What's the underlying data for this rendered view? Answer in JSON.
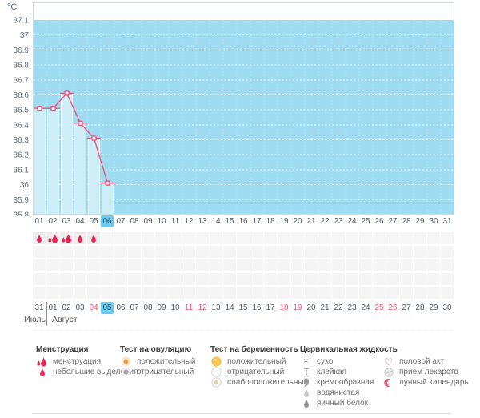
{
  "unit_label": "°C",
  "colors": {
    "plot_bg": "#a0dcf1",
    "plot_band_top": "#fcfeff",
    "plot_border": "#b9e4f4",
    "bar_fill": "#cdedf8",
    "bar_edge": "#e6f7fc",
    "accent_pink": "#f0527a",
    "drop_red": "#e62753",
    "highlight_blue": "#67cbef",
    "red_date": "#f2537d",
    "axis_text": "#5c6e78"
  },
  "chart_data": {
    "type": "line",
    "ylabel": "°C",
    "ylim": [
      35.8,
      37.1
    ],
    "ytick_step": 0.1,
    "ytick_labels": [
      "37.1",
      "37",
      "36.9",
      "36.8",
      "36.7",
      "36.6",
      "36.5",
      "36.4",
      "36.3",
      "36.2",
      "36.1",
      "36",
      "35.9",
      "35.8"
    ],
    "grid": "dotted-white-horizontal",
    "legend_position": "bottom",
    "days": [
      "01",
      "02",
      "03",
      "04",
      "05",
      "06",
      "07",
      "08",
      "09",
      "10",
      "11",
      "12",
      "13",
      "14",
      "15",
      "16",
      "17",
      "18",
      "19",
      "20",
      "21",
      "22",
      "23",
      "24",
      "25",
      "26",
      "27",
      "28",
      "29",
      "30",
      "31"
    ],
    "series": [
      {
        "name": "temperature",
        "day_indices": [
          1,
          2,
          3,
          4,
          5,
          6
        ],
        "values": [
          36.5,
          36.5,
          36.6,
          36.4,
          36.3,
          36.0
        ]
      }
    ],
    "bars_under_points": true
  },
  "cycle_row": {
    "highlighted_day": "06"
  },
  "tracking": {
    "menstruation_cells": [
      {
        "day": "01",
        "icon": "drop-small"
      },
      {
        "day": "02",
        "icon": "drop-duo"
      },
      {
        "day": "03",
        "icon": "drop-duo"
      },
      {
        "day": "04",
        "icon": "drop-small"
      },
      {
        "day": "05",
        "icon": "drop-small"
      }
    ],
    "empty_rows": 4
  },
  "calendar": {
    "dates": [
      "31",
      "01",
      "02",
      "03",
      "04",
      "05",
      "06",
      "07",
      "08",
      "09",
      "10",
      "11",
      "12",
      "13",
      "14",
      "15",
      "16",
      "17",
      "18",
      "19",
      "20",
      "21",
      "22",
      "23",
      "24",
      "25",
      "26",
      "27",
      "28",
      "29",
      "30"
    ],
    "red_dates": [
      "04",
      "11",
      "12",
      "18",
      "19",
      "25",
      "26"
    ],
    "highlighted_date": "05",
    "month_left": "Июль",
    "month_right": "Август"
  },
  "legend": {
    "groups": [
      {
        "header": "Менструация",
        "items": [
          {
            "icon": "drop-duo",
            "label": "менструация"
          },
          {
            "icon": "drop-small",
            "label": "небольшие выделения"
          }
        ]
      },
      {
        "header": "Тест на овуляцию",
        "items": [
          {
            "icon": "radio-positive",
            "label": "положительный"
          },
          {
            "icon": "radio-negative",
            "label": "отрицательный"
          }
        ]
      },
      {
        "header": "Тест на беременность",
        "items": [
          {
            "icon": "bead-positive",
            "label": "положительный"
          },
          {
            "icon": "bead-negative",
            "label": "отрицательный"
          },
          {
            "icon": "bead-weak",
            "label": "слабоположительный"
          }
        ]
      },
      {
        "header": "Цервикальная жидкость",
        "items": [
          {
            "icon": "x-dry",
            "label": "сухо"
          },
          {
            "icon": "sticky",
            "label": "клейкая"
          },
          {
            "icon": "creamy",
            "label": "кремообразная"
          },
          {
            "icon": "watery",
            "label": "водянистая"
          },
          {
            "icon": "eggwhite",
            "label": "яичный белок"
          }
        ]
      },
      {
        "header": "",
        "items": [
          {
            "icon": "heart",
            "label": "половой акт"
          },
          {
            "icon": "pill",
            "label": "прием лекарств"
          },
          {
            "icon": "moon",
            "label": "лунный календарь"
          }
        ]
      }
    ]
  }
}
